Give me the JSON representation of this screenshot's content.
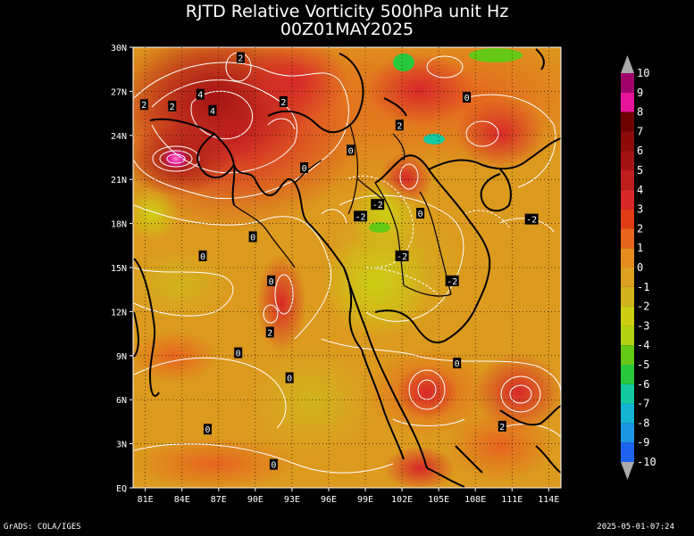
{
  "title": "RJTD Relative Vorticity 500hPa unit Hz",
  "subtitle": "00Z01MAY2025",
  "footer_left": "GrADS: COLA/IGES",
  "footer_right": "2025-05-01-07:24",
  "map": {
    "lon_range": [
      80,
      115
    ],
    "lat_range": [
      0,
      30
    ],
    "lon_ticks": [
      "81E",
      "84E",
      "87E",
      "90E",
      "93E",
      "96E",
      "99E",
      "102E",
      "105E",
      "108E",
      "111E",
      "114E"
    ],
    "lat_ticks": [
      "EQ",
      "3N",
      "6N",
      "9N",
      "12N",
      "15N",
      "18N",
      "21N",
      "24N",
      "27N",
      "30N"
    ]
  },
  "colorbar": {
    "levels": [
      "10",
      "9",
      "8",
      "7",
      "6",
      "5",
      "4",
      "3",
      "2",
      "1",
      "0",
      "-1",
      "-2",
      "-3",
      "-4",
      "-5",
      "-6",
      "-7",
      "-8",
      "-9",
      "-10"
    ],
    "colors": [
      "#a0006a",
      "#e6149b",
      "#6e0000",
      "#8c0a0a",
      "#a51414",
      "#be1e1e",
      "#d72828",
      "#e13c14",
      "#e6641e",
      "#e68c1e",
      "#dca01e",
      "#d2b41e",
      "#cdcd14",
      "#b4d214",
      "#64c814",
      "#28c83c",
      "#14c8a0",
      "#14b4d2",
      "#1e96e6",
      "#1e64f0"
    ],
    "arrow_color": "#aaaaaa"
  },
  "contour_labels": [
    {
      "text": "2",
      "lon": 88.8,
      "lat": 29.3
    },
    {
      "text": "2",
      "lon": 80.9,
      "lat": 26.1
    },
    {
      "text": "2",
      "lon": 83.2,
      "lat": 26.0
    },
    {
      "text": "4",
      "lon": 85.5,
      "lat": 26.8
    },
    {
      "text": "4",
      "lon": 86.5,
      "lat": 25.7
    },
    {
      "text": "2",
      "lon": 92.3,
      "lat": 26.3
    },
    {
      "text": "2",
      "lon": 101.8,
      "lat": 24.7
    },
    {
      "text": "0",
      "lon": 107.3,
      "lat": 26.6
    },
    {
      "text": "0",
      "lon": 97.8,
      "lat": 23.0
    },
    {
      "text": "0",
      "lon": 94.0,
      "lat": 21.8
    },
    {
      "text": "-2",
      "lon": 98.6,
      "lat": 18.5
    },
    {
      "text": "-2",
      "lon": 100.0,
      "lat": 19.3
    },
    {
      "text": "0",
      "lon": 103.5,
      "lat": 18.7
    },
    {
      "text": "-2",
      "lon": 112.6,
      "lat": 18.3
    },
    {
      "text": "0",
      "lon": 89.8,
      "lat": 17.1
    },
    {
      "text": "0",
      "lon": 85.7,
      "lat": 15.8
    },
    {
      "text": "-2",
      "lon": 102.0,
      "lat": 15.8
    },
    {
      "text": "0",
      "lon": 91.3,
      "lat": 14.1
    },
    {
      "text": "-2",
      "lon": 106.1,
      "lat": 14.1
    },
    {
      "text": "2",
      "lon": 91.2,
      "lat": 10.6
    },
    {
      "text": "0",
      "lon": 88.6,
      "lat": 9.2
    },
    {
      "text": "0",
      "lon": 106.5,
      "lat": 8.5
    },
    {
      "text": "0",
      "lon": 92.8,
      "lat": 7.5
    },
    {
      "text": "2",
      "lon": 110.2,
      "lat": 4.2
    },
    {
      "text": "0",
      "lon": 86.1,
      "lat": 4.0
    },
    {
      "text": "0",
      "lon": 91.5,
      "lat": 1.6
    }
  ]
}
